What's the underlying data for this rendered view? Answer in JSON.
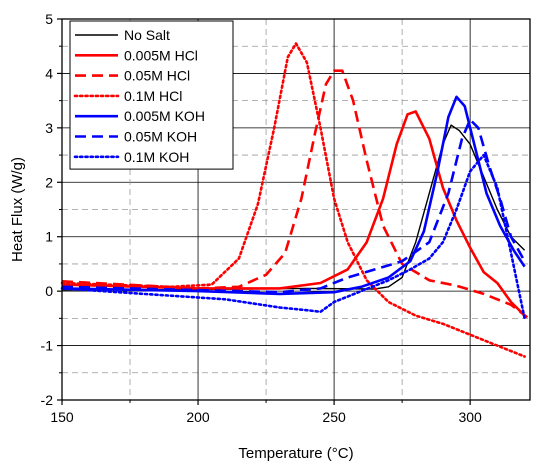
{
  "chart_data": {
    "type": "line",
    "title": "",
    "xlabel": "Temperature (°C)",
    "ylabel": "Heat Flux (W/g)",
    "xlim": [
      150,
      322
    ],
    "ylim": [
      -2,
      5
    ],
    "xticks": [
      "150",
      "200",
      "250",
      "300"
    ],
    "yticks": [
      "-2",
      "-1",
      "0",
      "1",
      "2",
      "3",
      "4",
      "5"
    ],
    "grid": true,
    "legend_position": "top-left",
    "series": [
      {
        "name": "No Salt",
        "color": "#000000",
        "dash": "solid",
        "x": [
          150,
          200,
          240,
          265,
          270,
          275,
          280,
          285,
          290,
          293,
          296,
          300,
          305,
          310,
          315,
          320
        ],
        "y": [
          0.02,
          0.03,
          0.05,
          0.04,
          0.08,
          0.25,
          0.9,
          1.8,
          2.7,
          3.05,
          2.95,
          2.7,
          2.1,
          1.5,
          1.0,
          0.75
        ]
      },
      {
        "name": "0.005M HCl",
        "color": "#ff0000",
        "dash": "solid",
        "x": [
          150,
          200,
          230,
          245,
          255,
          262,
          268,
          273,
          277,
          280,
          285,
          290,
          295,
          300,
          305,
          310,
          315,
          320
        ],
        "y": [
          0.12,
          0.05,
          0.05,
          0.15,
          0.4,
          0.9,
          1.7,
          2.7,
          3.25,
          3.3,
          2.8,
          1.9,
          1.3,
          0.8,
          0.35,
          0.15,
          -0.2,
          -0.45
        ]
      },
      {
        "name": "0.05M HCl",
        "color": "#ff0000",
        "dash": "dashed",
        "x": [
          150,
          200,
          215,
          225,
          232,
          238,
          243,
          247,
          250,
          253,
          257,
          262,
          268,
          275,
          285,
          295,
          305,
          315,
          321
        ],
        "y": [
          0.18,
          0.05,
          0.08,
          0.3,
          0.7,
          1.7,
          2.9,
          3.8,
          4.05,
          4.05,
          3.5,
          2.4,
          1.2,
          0.5,
          0.2,
          0.1,
          -0.05,
          -0.25,
          -0.48
        ]
      },
      {
        "name": "0.1M HCl",
        "color": "#ff0000",
        "dash": "dotted",
        "x": [
          150,
          190,
          205,
          215,
          222,
          228,
          233,
          236,
          240,
          245,
          250,
          255,
          262,
          270,
          280,
          290,
          300,
          310,
          320
        ],
        "y": [
          0.15,
          0.08,
          0.12,
          0.6,
          1.6,
          3.0,
          4.3,
          4.55,
          4.2,
          3.0,
          1.7,
          0.9,
          0.2,
          -0.2,
          -0.45,
          -0.6,
          -0.8,
          -1.0,
          -1.2
        ]
      },
      {
        "name": "0.005M KOH",
        "color": "#0000ff",
        "dash": "solid",
        "x": [
          150,
          200,
          230,
          250,
          260,
          270,
          278,
          283,
          288,
          292,
          295,
          298,
          302,
          306,
          311,
          316,
          320
        ],
        "y": [
          0.05,
          0.0,
          -0.05,
          -0.02,
          0.08,
          0.25,
          0.55,
          1.1,
          2.2,
          3.2,
          3.57,
          3.4,
          2.6,
          1.8,
          1.2,
          0.75,
          0.45
        ]
      },
      {
        "name": "0.05M KOH",
        "color": "#0000ff",
        "dash": "dashed",
        "x": [
          150,
          200,
          230,
          245,
          255,
          265,
          275,
          285,
          292,
          297,
          300,
          303,
          307,
          311,
          315,
          320
        ],
        "y": [
          0.08,
          0.02,
          -0.02,
          0.05,
          0.25,
          0.4,
          0.55,
          0.9,
          1.8,
          2.8,
          3.15,
          3.0,
          2.3,
          1.7,
          1.0,
          0.55
        ]
      },
      {
        "name": "0.1M KOH",
        "color": "#0000ff",
        "dash": "dotted",
        "x": [
          150,
          180,
          210,
          230,
          240,
          245,
          250,
          260,
          270,
          278,
          285,
          290,
          295,
          300,
          305,
          310,
          315,
          320
        ],
        "y": [
          0.05,
          -0.05,
          -0.15,
          -0.3,
          -0.35,
          -0.38,
          -0.2,
          0.0,
          0.2,
          0.4,
          0.6,
          0.9,
          1.5,
          2.2,
          2.5,
          1.9,
          0.7,
          -0.5
        ]
      }
    ]
  }
}
